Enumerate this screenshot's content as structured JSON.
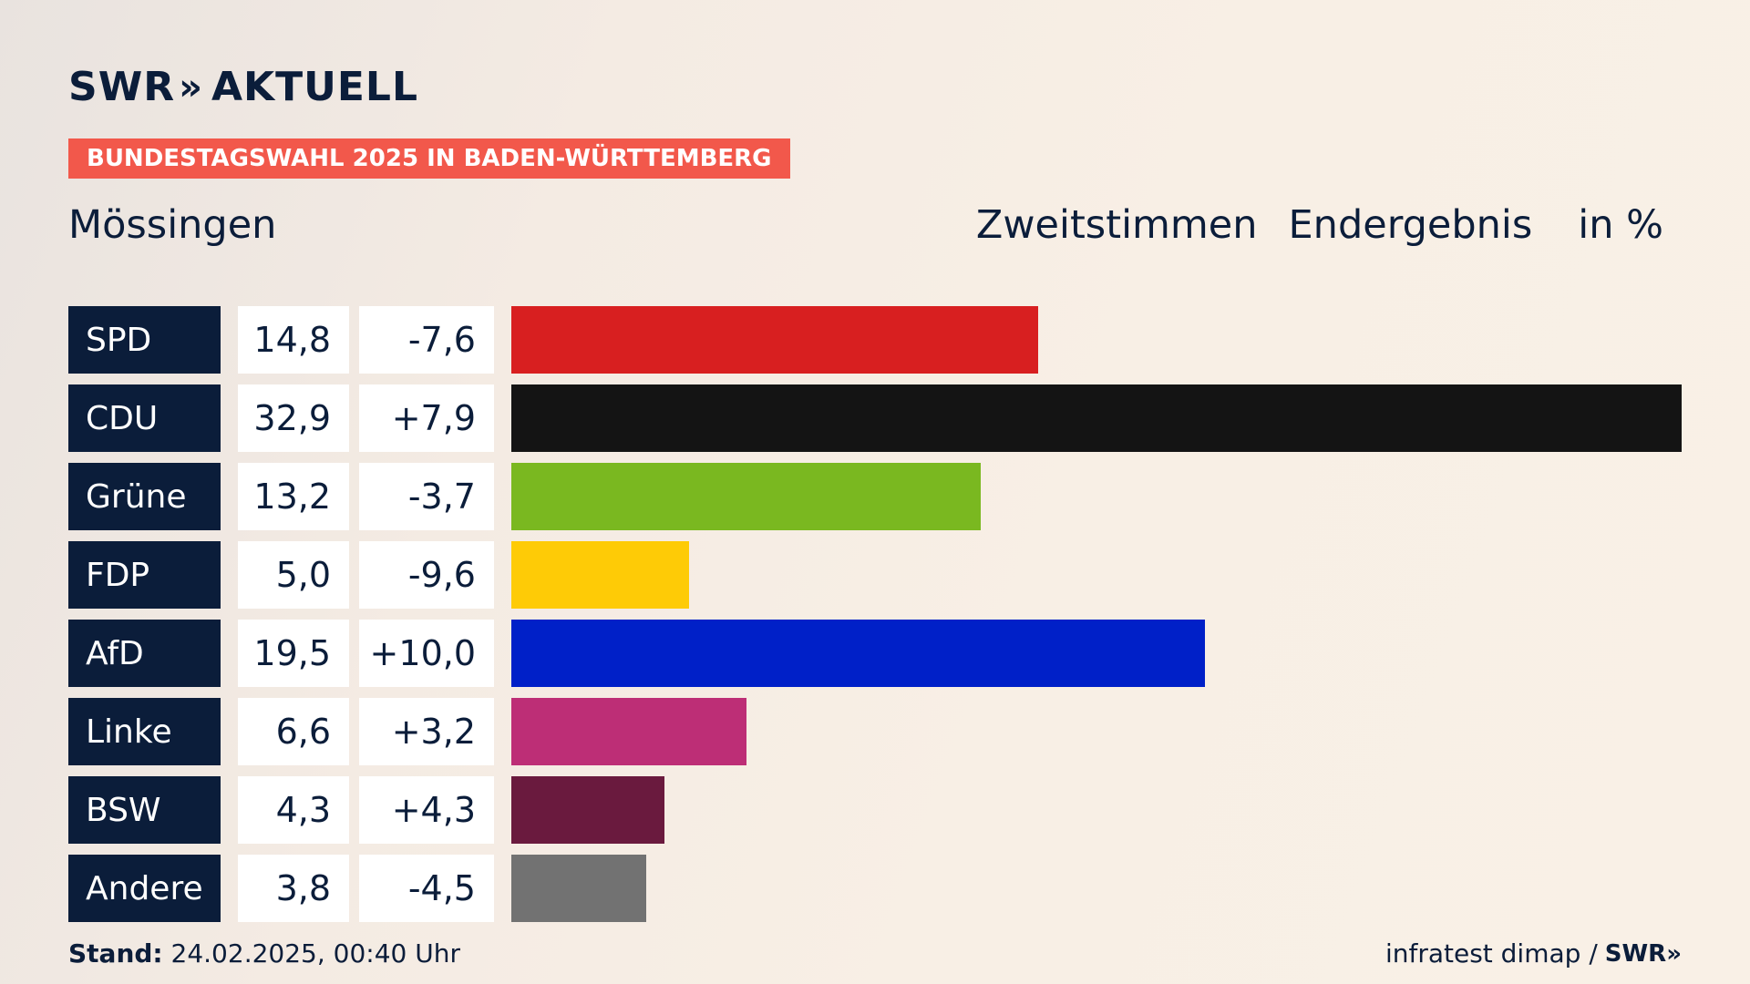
{
  "logo": {
    "brand": "SWR",
    "chevrons": "»",
    "product": "AKTUELL"
  },
  "kicker": "BUNDESTAGSWAHL 2025 IN BADEN-WÜRTTEMBERG",
  "place": "Mössingen",
  "header": {
    "vote_type": "Zweitstimmen",
    "status": "Endergebnis",
    "unit": "in %"
  },
  "chart_data": {
    "type": "bar",
    "orientation": "horizontal",
    "title": "Mössingen",
    "categories": [
      "SPD",
      "CDU",
      "Grüne",
      "FDP",
      "AfD",
      "Linke",
      "BSW",
      "Andere"
    ],
    "values": [
      "14,8",
      "32,9",
      "13,2",
      "5,0",
      "19,5",
      "6,6",
      "4,3",
      "3,8"
    ],
    "numeric_values": [
      14.8,
      32.9,
      13.2,
      5.0,
      19.5,
      6.6,
      4.3,
      3.8
    ],
    "changes": [
      "-7,6",
      "+7,9",
      "-3,7",
      "-9,6",
      "+10,0",
      "+3,2",
      "+4,3",
      "-4,5"
    ],
    "colors": [
      "#d81f20",
      "#141414",
      "#7ab820",
      "#fecb06",
      "#0020c8",
      "#bd2e76",
      "#6a1a3e",
      "#727272"
    ],
    "xlim": [
      0,
      32.9
    ],
    "grid": false,
    "legend": "none"
  },
  "footer": {
    "stand_label": "Stand:",
    "stand_value": "24.02.2025, 00:40 Uhr",
    "source": "infratest dimap /",
    "source_brand": "SWR»"
  }
}
